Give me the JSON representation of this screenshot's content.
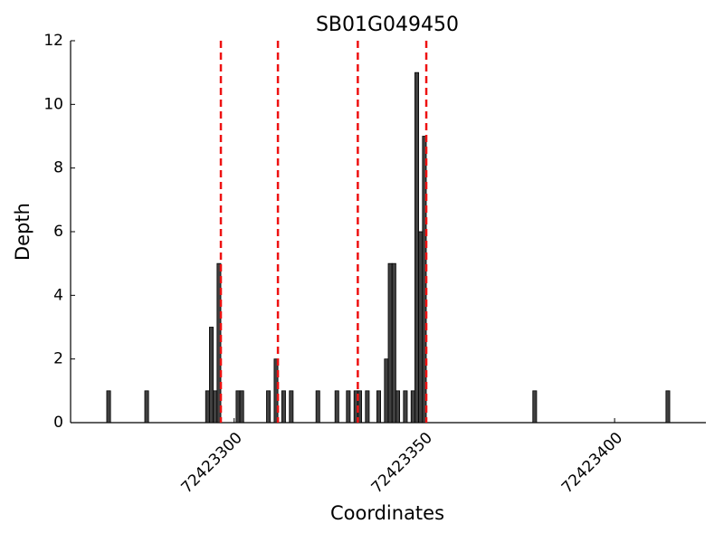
{
  "chart_data": {
    "type": "bar",
    "title": "SB01G049450",
    "xlabel": "Coordinates",
    "ylabel": "Depth",
    "x": [
      72423267,
      72423277,
      72423293,
      72423294,
      72423295,
      72423296,
      72423301,
      72423302,
      72423309,
      72423311,
      72423313,
      72423315,
      72423322,
      72423327,
      72423330,
      72423332,
      72423333,
      72423335,
      72423338,
      72423340,
      72423341,
      72423342,
      72423343,
      72423345,
      72423347,
      72423348,
      72423349,
      72423350,
      72423379,
      72423414
    ],
    "values": [
      1,
      1,
      1,
      3,
      1,
      5,
      1,
      1,
      1,
      2,
      1,
      1,
      1,
      1,
      1,
      1,
      1,
      1,
      1,
      2,
      5,
      5,
      1,
      1,
      1,
      11,
      6,
      9,
      1,
      1
    ],
    "color": "#404040",
    "vlines": [
      72423296.5,
      72423311.5,
      72423332.5,
      72423350.5
    ],
    "vline_color": "#ee1111",
    "xlim": [
      72423257,
      72423424
    ],
    "xticks": [
      72423300,
      72423350,
      72423400
    ],
    "ylim": [
      0,
      12
    ],
    "yticks": [
      0,
      2,
      4,
      6,
      8,
      10,
      12
    ]
  }
}
